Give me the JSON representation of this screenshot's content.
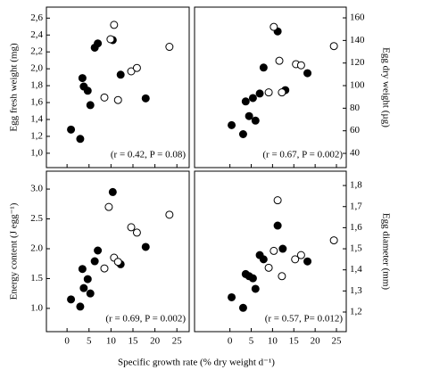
{
  "xlabel": "Specific growth rate (% dry weight d⁻¹)",
  "chart_data": [
    {
      "type": "scatter",
      "ylabel": "Egg fresh weight (mg)",
      "yaxis_side": "left",
      "xtick_labels": false,
      "annotation": "(r = 0.42, P = 0.08)",
      "xlim": [
        -4.7,
        27.8
      ],
      "xticks": [
        0,
        5,
        10,
        15,
        20,
        25
      ],
      "ylim": [
        0.83,
        2.73
      ],
      "yticks": [
        {
          "value": 1.0,
          "label": "1,0"
        },
        {
          "value": 1.2,
          "label": "1,2"
        },
        {
          "value": 1.4,
          "label": "1,4"
        },
        {
          "value": 1.6,
          "label": "1,6"
        },
        {
          "value": 1.8,
          "label": "1,8"
        },
        {
          "value": 2.0,
          "label": "2,0"
        },
        {
          "value": 2.2,
          "label": "2,2"
        },
        {
          "value": 2.4,
          "label": "2,4"
        },
        {
          "value": 2.6,
          "label": "2,6"
        }
      ],
      "series": [
        {
          "marker": "filled",
          "color": "#000000",
          "x": [
            0.9,
            3.0,
            3.5,
            3.8,
            4.7,
            5.3,
            6.3,
            7.0,
            10.4,
            12.2,
            17.9
          ],
          "values": [
            1.28,
            1.17,
            1.89,
            1.79,
            1.74,
            1.57,
            2.25,
            2.3,
            2.34,
            1.93,
            1.65
          ]
        },
        {
          "marker": "open",
          "color": "#000000",
          "x": [
            8.5,
            9.9,
            10.7,
            11.6,
            14.6,
            15.9,
            23.3
          ],
          "values": [
            1.66,
            2.35,
            2.52,
            1.63,
            1.97,
            2.01,
            2.26
          ]
        }
      ]
    },
    {
      "type": "scatter",
      "ylabel": "Egg dry weight (µg)",
      "yaxis_side": "right",
      "xtick_labels": false,
      "annotation": "(r = 0.67, P = 0.002)",
      "xlim": [
        -8.3,
        27.3
      ],
      "xticks": [
        0,
        5,
        10,
        15,
        20,
        25
      ],
      "ylim": [
        27.4,
        169.5
      ],
      "yticks": [
        40,
        60,
        80,
        100,
        120,
        140,
        160
      ],
      "series": [
        {
          "marker": "filled",
          "color": "#000000",
          "x": [
            0.4,
            3.1,
            3.7,
            4.5,
            5.4,
            6.0,
            7.0,
            7.9,
            11.2,
            13.0,
            18.2
          ],
          "values": [
            65,
            57,
            86,
            73,
            89,
            69,
            93,
            116,
            148,
            96,
            111
          ]
        },
        {
          "marker": "open",
          "color": "#000000",
          "x": [
            9.1,
            10.3,
            11.6,
            12.2,
            15.5,
            16.7,
            24.4
          ],
          "values": [
            94,
            152,
            122,
            94,
            119,
            118,
            135
          ]
        }
      ]
    },
    {
      "type": "scatter",
      "ylabel": "Energy content (J egg⁻¹)",
      "yaxis_side": "left",
      "xtick_labels": true,
      "annotation": "(r = 0.69, P = 0.002)",
      "xlim": [
        -4.7,
        27.8
      ],
      "xticks": [
        0,
        5,
        10,
        15,
        20,
        25
      ],
      "ylim": [
        0.61,
        3.3
      ],
      "yticks": [
        {
          "value": 1.0,
          "label": "1.0"
        },
        {
          "value": 1.5,
          "label": "1.5"
        },
        {
          "value": 2.0,
          "label": "2.0"
        },
        {
          "value": 2.5,
          "label": "2.5"
        },
        {
          "value": 3.0,
          "label": "3.0"
        }
      ],
      "series": [
        {
          "marker": "filled",
          "color": "#000000",
          "x": [
            0.9,
            3.0,
            3.5,
            3.8,
            4.7,
            5.3,
            6.3,
            7.0,
            10.4,
            12.2,
            17.9
          ],
          "values": [
            1.15,
            1.03,
            1.66,
            1.34,
            1.49,
            1.25,
            1.79,
            1.97,
            2.95,
            1.74,
            2.03
          ]
        },
        {
          "marker": "open",
          "color": "#000000",
          "x": [
            8.5,
            9.5,
            10.7,
            11.6,
            14.6,
            15.9,
            23.3
          ],
          "values": [
            1.67,
            2.7,
            1.85,
            1.78,
            2.36,
            2.27,
            2.57
          ]
        }
      ]
    },
    {
      "type": "scatter",
      "ylabel": "Egg diameter (mm)",
      "yaxis_side": "right",
      "xtick_labels": true,
      "annotation": "(r = 0.57, P= 0.012)",
      "xlim": [
        -8.3,
        27.3
      ],
      "xticks": [
        0,
        5,
        10,
        15,
        20,
        25
      ],
      "ylim": [
        1.107,
        1.868
      ],
      "yticks": [
        {
          "value": 1.2,
          "label": "1,2"
        },
        {
          "value": 1.3,
          "label": "1,3"
        },
        {
          "value": 1.4,
          "label": "1,4"
        },
        {
          "value": 1.5,
          "label": "1,5"
        },
        {
          "value": 1.6,
          "label": "1,6"
        },
        {
          "value": 1.7,
          "label": "1,7"
        },
        {
          "value": 1.8,
          "label": "1,8"
        }
      ],
      "series": [
        {
          "marker": "filled",
          "color": "#000000",
          "x": [
            0.4,
            3.1,
            3.7,
            4.5,
            5.4,
            6.0,
            7.0,
            7.9,
            11.2,
            12.4,
            18.2
          ],
          "values": [
            1.27,
            1.22,
            1.38,
            1.37,
            1.36,
            1.31,
            1.47,
            1.45,
            1.61,
            1.5,
            1.44
          ]
        },
        {
          "marker": "open",
          "color": "#000000",
          "x": [
            9.1,
            10.3,
            11.2,
            12.2,
            15.3,
            16.7,
            24.4
          ],
          "values": [
            1.41,
            1.49,
            1.73,
            1.37,
            1.45,
            1.47,
            1.54
          ]
        }
      ]
    }
  ]
}
